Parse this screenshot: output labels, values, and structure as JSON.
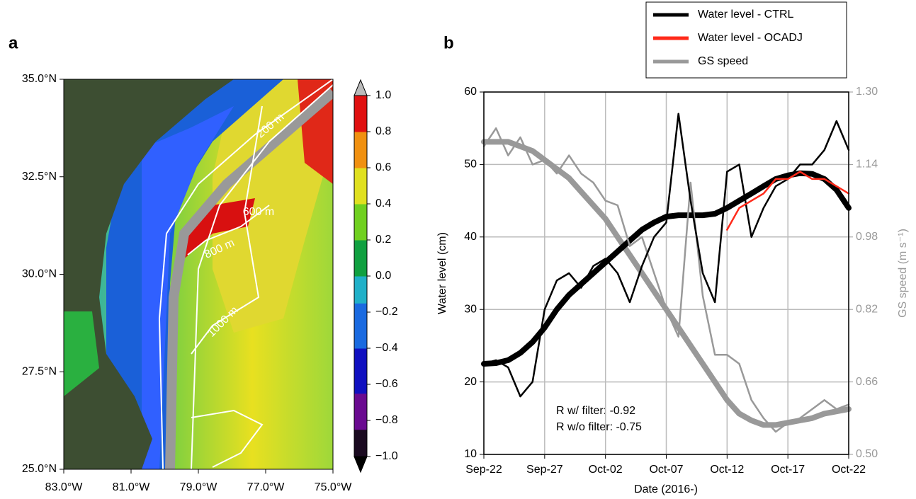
{
  "chart_data": [
    {
      "type": "map",
      "panel": "a",
      "xlim": [
        -83,
        -75
      ],
      "ylim": [
        25,
        35
      ],
      "xticks": [
        {
          "value": -83,
          "label": "83.0°W"
        },
        {
          "value": -81,
          "label": "81.0°W"
        },
        {
          "value": -79,
          "label": "79.0°W"
        },
        {
          "value": -77,
          "label": "77.0°W"
        },
        {
          "value": -75,
          "label": "75.0°W"
        }
      ],
      "yticks": [
        {
          "value": 25,
          "label": "25.0°N"
        },
        {
          "value": 27.5,
          "label": "27.5°N"
        },
        {
          "value": 30,
          "label": "30.0°N"
        },
        {
          "value": 32.5,
          "label": "32.5°N"
        },
        {
          "value": 35,
          "label": "35.0°N"
        }
      ],
      "colorbar": {
        "lim": [
          -1,
          1
        ],
        "ticks": [
          {
            "value": 1,
            "label": "1.0"
          },
          0.8,
          0.6,
          0.4,
          0.2,
          {
            "value": 0,
            "label": "0.0"
          },
          {
            "value": -0.2,
            "label": "−0.2"
          },
          {
            "value": -0.4,
            "label": "−0.4"
          },
          {
            "value": -0.6,
            "label": "−0.6"
          },
          {
            "value": -0.8,
            "label": "−0.8"
          },
          {
            "value": -1,
            "label": "−1.0"
          }
        ]
      },
      "annotations": [
        "200 m",
        "600 m",
        "800 m",
        "1000 m"
      ]
    },
    {
      "type": "line",
      "panel": "b",
      "x": [
        "Sep-22",
        "Sep-23",
        "Sep-24",
        "Sep-25",
        "Sep-26",
        "Sep-27",
        "Sep-28",
        "Sep-29",
        "Sep-30",
        "Oct-01",
        "Oct-02",
        "Oct-03",
        "Oct-04",
        "Oct-05",
        "Oct-06",
        "Oct-07",
        "Oct-08",
        "Oct-09",
        "Oct-10",
        "Oct-11",
        "Oct-12",
        "Oct-13",
        "Oct-14",
        "Oct-15",
        "Oct-16",
        "Oct-17",
        "Oct-18",
        "Oct-19",
        "Oct-20",
        "Oct-21",
        "Oct-22"
      ],
      "xticks": [
        "Sep-22",
        "Sep-27",
        "Oct-02",
        "Oct-07",
        "Oct-12",
        "Oct-17",
        "Oct-22"
      ],
      "xlabel": "Date (2016-)",
      "ylabel": "Water level (cm)",
      "y2label": "GS speed (m s⁻¹)",
      "ylim": [
        10,
        60
      ],
      "yticks": [
        10,
        20,
        30,
        40,
        50,
        60
      ],
      "y2lim": [
        0.5,
        1.3
      ],
      "y2ticks": [
        {
          "value": 0.5,
          "label": "0.50"
        },
        0.66,
        0.82,
        0.98,
        1.14,
        {
          "value": 1.3,
          "label": "1.30"
        }
      ],
      "grid": true,
      "legend": "upper right",
      "series": [
        {
          "name": "Water level - CTRL",
          "color": "#000000",
          "values": [
            22.5,
            23,
            22,
            18,
            20,
            30,
            34,
            35,
            33,
            36,
            37,
            35,
            31,
            36,
            40,
            42,
            57,
            45,
            35,
            31,
            49,
            50,
            40,
            44,
            47,
            48,
            50,
            50,
            52,
            56,
            52
          ],
          "filtered": [
            22.5,
            22.6,
            23,
            24,
            25.5,
            27.5,
            30,
            32,
            33.5,
            35,
            36.5,
            38,
            39.5,
            41,
            42,
            42.8,
            43,
            43,
            43,
            43.2,
            44,
            45,
            46,
            47,
            48,
            48.5,
            48.8,
            48.7,
            48,
            46.5,
            44
          ]
        },
        {
          "name": "Water level - OCADJ",
          "color": "#ff2a1a",
          "values": [
            null,
            null,
            null,
            null,
            null,
            null,
            null,
            null,
            null,
            null,
            null,
            null,
            null,
            null,
            null,
            null,
            null,
            null,
            null,
            null,
            41,
            44,
            45,
            46,
            48,
            48,
            49,
            48,
            48,
            47,
            46
          ]
        },
        {
          "name": "GS speed",
          "color": "#999999",
          "axis": "y2",
          "values": [
            1.18,
            1.22,
            1.16,
            1.2,
            1.14,
            1.15,
            1.12,
            1.16,
            1.12,
            1.1,
            1.06,
            1.05,
            0.96,
            0.98,
            0.9,
            0.82,
            0.76,
            1.1,
            0.85,
            0.72,
            0.72,
            0.7,
            0.62,
            0.58,
            0.55,
            0.57,
            0.58,
            0.6,
            0.62,
            0.6,
            0.61
          ],
          "filtered": [
            1.19,
            1.19,
            1.19,
            1.18,
            1.17,
            1.15,
            1.13,
            1.11,
            1.08,
            1.05,
            1.02,
            0.98,
            0.94,
            0.9,
            0.86,
            0.82,
            0.78,
            0.74,
            0.7,
            0.66,
            0.62,
            0.59,
            0.575,
            0.565,
            0.565,
            0.57,
            0.575,
            0.58,
            0.59,
            0.595,
            0.6
          ]
        }
      ],
      "annotations": [
        "R w/ filter: -0.92",
        "R w/o filter: -0.75"
      ]
    }
  ]
}
